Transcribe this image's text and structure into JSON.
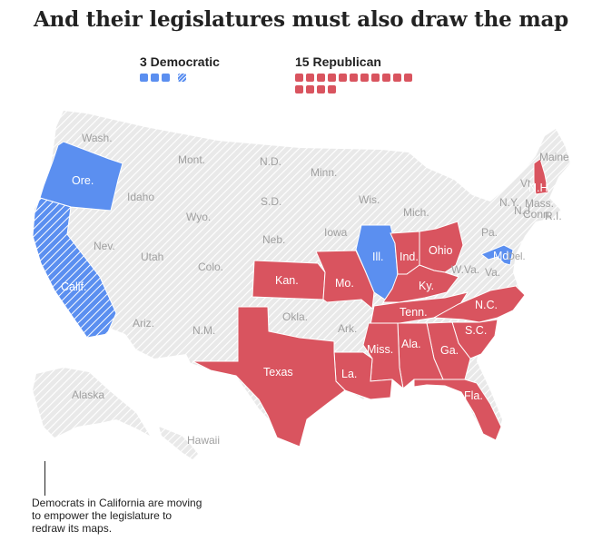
{
  "title": "And their legislatures must also draw the map",
  "legend": {
    "democratic": {
      "label": "3 Democratic",
      "color": "#5b8ff0",
      "count": 3
    },
    "republican": {
      "label": "15 Republican",
      "color": "#d9545f",
      "count": 15
    }
  },
  "colors": {
    "neutral": "#e8e8e8",
    "hatch": "#ffffff",
    "dem": "#5b8ff0",
    "rep": "#d9545f"
  },
  "states": {
    "wash": "Wash.",
    "mont": "Mont.",
    "nd": "N.D.",
    "minn": "Minn.",
    "ore": "Ore.",
    "idaho": "Idaho",
    "wyo": "Wyo.",
    "sd": "S.D.",
    "wis": "Wis.",
    "mich": "Mich.",
    "ny": "N.Y.",
    "maine": "Maine",
    "vt": "Vt.",
    "nh": "N.H.",
    "mass": "Mass.",
    "conn": "Conn.",
    "ri": "R.I.",
    "nev": "Nev.",
    "utah": "Utah",
    "colo": "Colo.",
    "neb": "Neb.",
    "iowa": "Iowa",
    "ill": "Ill.",
    "ind": "Ind.",
    "ohio": "Ohio",
    "pa": "Pa.",
    "nj": "N.J.",
    "md": "Md.",
    "del": "Del.",
    "wva": "W.Va.",
    "va": "Va.",
    "calif": "Calif.",
    "kan": "Kan.",
    "mo": "Mo.",
    "ky": "Ky.",
    "nc": "N.C.",
    "ariz": "Ariz.",
    "nm": "N.M.",
    "okla": "Okla.",
    "ark": "Ark.",
    "tenn": "Tenn.",
    "sc": "S.C.",
    "texas": "Texas",
    "miss": "Miss.",
    "ala": "Ala.",
    "ga": "Ga.",
    "la": "La.",
    "fla": "Fla.",
    "alaska": "Alaska",
    "hawaii": "Hawaii"
  },
  "annotation": "Democrats in California are moving to empower the legislature to redraw its maps."
}
